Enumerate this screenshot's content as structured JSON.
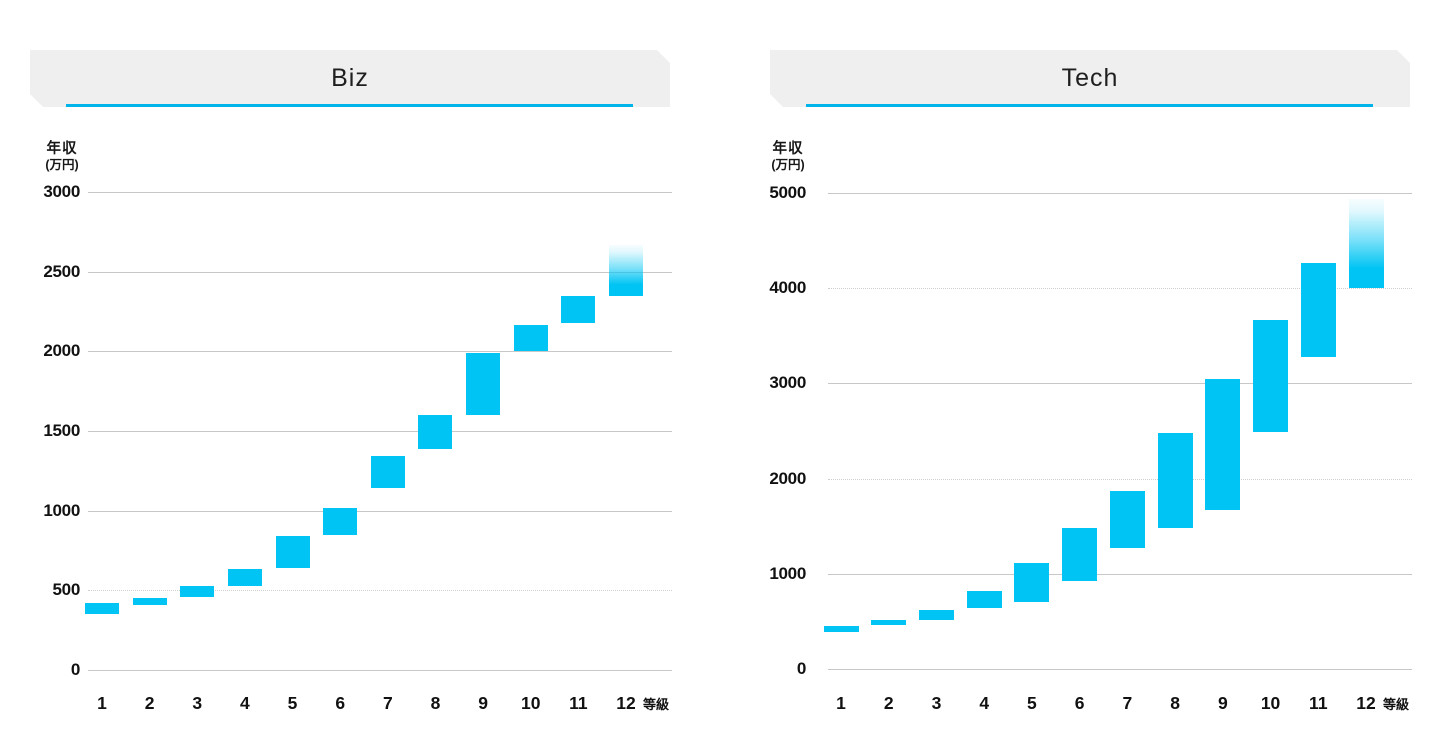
{
  "page": {
    "background": "#ffffff"
  },
  "charts_common": {
    "y_unit_line1": "年収",
    "y_unit_line2": "(万円)",
    "grade_axis_label": "等級",
    "bar_color": "#00c4f3",
    "underline_color": "#00b3e9",
    "header_bg": "#efefef",
    "gridline_color": "#c8c8c8",
    "text_color": "#111111"
  },
  "chart_data": [
    {
      "type": "bar",
      "variant": "floating-range-column",
      "title": "Biz",
      "xlabel": "等級",
      "ylabel": "年収(万円)",
      "ylim": [
        0,
        3000
      ],
      "yticks": [
        3000,
        2500,
        2000,
        1500,
        1000,
        500,
        0
      ],
      "dotted_gridlines": [
        500
      ],
      "grid": true,
      "legend": false,
      "categories": [
        "1",
        "2",
        "3",
        "4",
        "5",
        "6",
        "7",
        "8",
        "9",
        "10",
        "11",
        "12"
      ],
      "bands": [
        {
          "grade": "1",
          "min": 350,
          "max": 420
        },
        {
          "grade": "2",
          "min": 410,
          "max": 455
        },
        {
          "grade": "3",
          "min": 455,
          "max": 530
        },
        {
          "grade": "4",
          "min": 525,
          "max": 635
        },
        {
          "grade": "5",
          "min": 640,
          "max": 840
        },
        {
          "grade": "6",
          "min": 845,
          "max": 1015
        },
        {
          "grade": "7",
          "min": 1140,
          "max": 1340
        },
        {
          "grade": "8",
          "min": 1390,
          "max": 1600
        },
        {
          "grade": "9",
          "min": 1600,
          "max": 1990
        },
        {
          "grade": "10",
          "min": 2000,
          "max": 2165
        },
        {
          "grade": "11",
          "min": 2175,
          "max": 2345
        },
        {
          "grade": "12",
          "min": 2345,
          "max": 2665,
          "open_ended_top": true
        }
      ]
    },
    {
      "type": "bar",
      "variant": "floating-range-column",
      "title": "Tech",
      "xlabel": "等級",
      "ylabel": "年収(万円)",
      "ylim": [
        0,
        5000
      ],
      "yticks": [
        5000,
        4000,
        3000,
        2000,
        1000,
        0
      ],
      "dotted_gridlines": [
        4000,
        2000
      ],
      "grid": true,
      "legend": false,
      "categories": [
        "1",
        "2",
        "3",
        "4",
        "5",
        "6",
        "7",
        "8",
        "9",
        "10",
        "11",
        "12"
      ],
      "bands": [
        {
          "grade": "1",
          "min": 390,
          "max": 455
        },
        {
          "grade": "2",
          "min": 460,
          "max": 510
        },
        {
          "grade": "3",
          "min": 515,
          "max": 625
        },
        {
          "grade": "4",
          "min": 640,
          "max": 820
        },
        {
          "grade": "5",
          "min": 700,
          "max": 1115
        },
        {
          "grade": "6",
          "min": 925,
          "max": 1480
        },
        {
          "grade": "7",
          "min": 1275,
          "max": 1870
        },
        {
          "grade": "8",
          "min": 1485,
          "max": 2480
        },
        {
          "grade": "9",
          "min": 1670,
          "max": 3045
        },
        {
          "grade": "10",
          "min": 2485,
          "max": 3665
        },
        {
          "grade": "11",
          "min": 3275,
          "max": 4260
        },
        {
          "grade": "12",
          "min": 4000,
          "max": 4940,
          "open_ended_top": true
        }
      ]
    }
  ]
}
